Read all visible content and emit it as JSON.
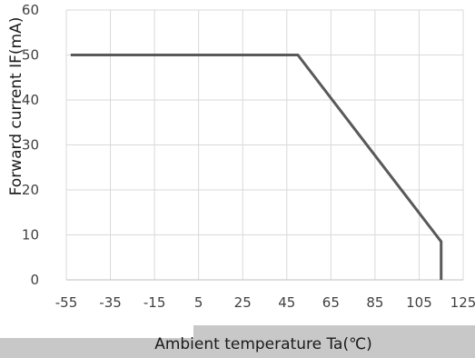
{
  "chart_data": {
    "type": "line",
    "title": "",
    "xlabel": "Ambient temperature Ta(℃)",
    "ylabel": "Forward current IF(mA)",
    "xlim": [
      -55,
      125
    ],
    "ylim": [
      0,
      60
    ],
    "x_ticks": [
      -55,
      -35,
      -15,
      5,
      25,
      45,
      65,
      85,
      105,
      125
    ],
    "y_ticks": [
      0,
      10,
      20,
      30,
      40,
      50,
      60
    ],
    "grid": true,
    "legend": "none",
    "series": [
      {
        "color": "#595959",
        "points": [
          [
            -53,
            50
          ],
          [
            50,
            50
          ],
          [
            115,
            8.5
          ],
          [
            115,
            0
          ]
        ]
      }
    ]
  }
}
